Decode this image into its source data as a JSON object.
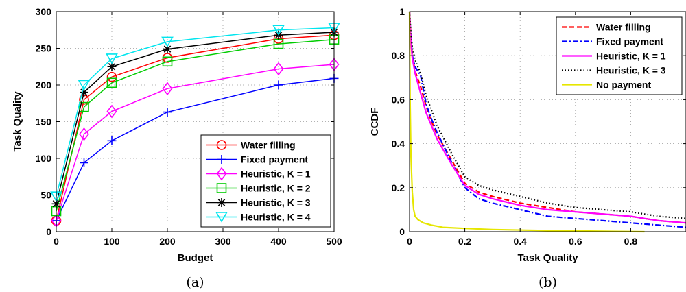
{
  "chart_data": [
    {
      "type": "line",
      "caption": "(a)",
      "xlabel": "Budget",
      "ylabel": "Task Quality",
      "xlim": [
        0,
        500
      ],
      "ylim": [
        0,
        300
      ],
      "xticks": [
        0,
        100,
        200,
        300,
        400,
        500
      ],
      "yticks": [
        0,
        50,
        100,
        150,
        200,
        250,
        300
      ],
      "grid": true,
      "legend_position": "bottom-right",
      "series": [
        {
          "name": "Water filling",
          "color": "#ff0000",
          "marker": "circle",
          "x": [
            0,
            50,
            100,
            200,
            400,
            500
          ],
          "y": [
            15,
            180,
            211,
            237,
            263,
            268
          ]
        },
        {
          "name": "Fixed payment",
          "color": "#0000ff",
          "marker": "plus",
          "x": [
            0,
            50,
            100,
            200,
            400,
            500
          ],
          "y": [
            15,
            94,
            124,
            163,
            200,
            209
          ]
        },
        {
          "name": "Heuristic, K = 1",
          "color": "#ff00ff",
          "marker": "diamond",
          "x": [
            0,
            50,
            100,
            200,
            400,
            500
          ],
          "y": [
            15,
            133,
            164,
            195,
            222,
            228
          ]
        },
        {
          "name": "Heuristic, K = 2",
          "color": "#00cc00",
          "marker": "square",
          "x": [
            0,
            50,
            100,
            200,
            400,
            500
          ],
          "y": [
            28,
            170,
            203,
            232,
            256,
            262
          ]
        },
        {
          "name": "Heuristic, K = 3",
          "color": "#000000",
          "marker": "asterisk",
          "x": [
            0,
            50,
            100,
            200,
            400,
            500
          ],
          "y": [
            38,
            190,
            225,
            249,
            268,
            272
          ]
        },
        {
          "name": "Heuristic, K = 4",
          "color": "#00e5ee",
          "marker": "triangle-down",
          "x": [
            0,
            50,
            100,
            200,
            400,
            500
          ],
          "y": [
            48,
            200,
            236,
            259,
            275,
            278
          ]
        }
      ]
    },
    {
      "type": "line",
      "caption": "(b)",
      "xlabel": "Task Quality",
      "ylabel": "CCDF",
      "xlim": [
        0,
        1
      ],
      "ylim": [
        0,
        1
      ],
      "xticks": [
        0,
        0.2,
        0.4,
        0.6,
        0.8
      ],
      "yticks": [
        0,
        0.2,
        0.4,
        0.6,
        0.8,
        1
      ],
      "grid": true,
      "legend_position": "top-right",
      "series": [
        {
          "name": "Water filling",
          "color": "#ff0000",
          "dash": "dashed",
          "x": [
            0,
            0.005,
            0.01,
            0.02,
            0.04,
            0.06,
            0.08,
            0.1,
            0.15,
            0.2,
            0.25,
            0.3,
            0.4,
            0.5,
            0.6,
            0.7,
            0.8,
            0.9,
            1.0
          ],
          "y": [
            1,
            0.88,
            0.8,
            0.73,
            0.66,
            0.57,
            0.5,
            0.44,
            0.33,
            0.22,
            0.18,
            0.16,
            0.13,
            0.11,
            0.09,
            0.08,
            0.07,
            0.05,
            0.04
          ]
        },
        {
          "name": "Fixed payment",
          "color": "#0000ff",
          "dash": "dashdot",
          "x": [
            0,
            0.005,
            0.01,
            0.02,
            0.04,
            0.06,
            0.08,
            0.1,
            0.15,
            0.2,
            0.25,
            0.3,
            0.4,
            0.5,
            0.6,
            0.7,
            0.8,
            0.9,
            1.0
          ],
          "y": [
            1,
            0.88,
            0.8,
            0.75,
            0.71,
            0.58,
            0.51,
            0.45,
            0.32,
            0.2,
            0.15,
            0.13,
            0.1,
            0.07,
            0.06,
            0.05,
            0.04,
            0.03,
            0.02
          ]
        },
        {
          "name": "Heuristic, K = 1",
          "color": "#ff00ff",
          "dash": "solid",
          "x": [
            0,
            0.005,
            0.01,
            0.02,
            0.04,
            0.06,
            0.08,
            0.1,
            0.15,
            0.2,
            0.25,
            0.3,
            0.4,
            0.5,
            0.6,
            0.7,
            0.8,
            0.9,
            1.0
          ],
          "y": [
            1,
            0.86,
            0.79,
            0.72,
            0.63,
            0.54,
            0.48,
            0.42,
            0.31,
            0.21,
            0.17,
            0.15,
            0.12,
            0.1,
            0.09,
            0.08,
            0.07,
            0.05,
            0.04
          ]
        },
        {
          "name": "Heuristic, K = 3",
          "color": "#000000",
          "dash": "dotted",
          "x": [
            0,
            0.005,
            0.01,
            0.02,
            0.04,
            0.06,
            0.08,
            0.1,
            0.15,
            0.2,
            0.25,
            0.3,
            0.4,
            0.5,
            0.6,
            0.7,
            0.8,
            0.9,
            1.0
          ],
          "y": [
            1,
            0.9,
            0.84,
            0.78,
            0.72,
            0.62,
            0.55,
            0.48,
            0.36,
            0.25,
            0.21,
            0.19,
            0.16,
            0.13,
            0.11,
            0.1,
            0.09,
            0.07,
            0.06
          ]
        },
        {
          "name": "No payment",
          "color": "#e6e600",
          "dash": "solid",
          "x": [
            0,
            0.002,
            0.005,
            0.01,
            0.015,
            0.02,
            0.03,
            0.05,
            0.08,
            0.12,
            0.2,
            0.3,
            0.5,
            0.7,
            0.85
          ],
          "y": [
            1,
            0.6,
            0.35,
            0.18,
            0.1,
            0.07,
            0.055,
            0.04,
            0.03,
            0.02,
            0.015,
            0.01,
            0.005,
            0.002,
            0.0
          ]
        }
      ]
    }
  ]
}
